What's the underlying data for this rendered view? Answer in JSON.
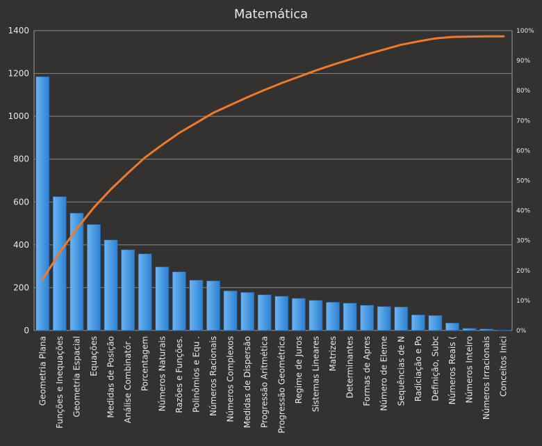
{
  "chart_data": {
    "type": "bar",
    "title": "Matemática",
    "categories": [
      "Geometria Plana",
      "Funções e Inequações",
      "Geometria Espacial",
      "Equações",
      "Medidas de Posição",
      "Análise Combinatór .",
      "Porcentagem",
      "Números Naturais",
      "Razões e Funções.",
      "Polinômios e Equ .",
      "Números Racionais",
      "Números Complexos",
      "Medidas de Dispersão",
      "Progressão Aritmética",
      "Progressão Geométrica",
      "Regime de Juros",
      "Sistemas Lineares",
      "Matrizes",
      "Determinantes",
      "Formas de Apres",
      "Número de Eleme",
      "Sequências de N",
      "Radiciação e Po",
      "Definição, Subc",
      "Números Reais (",
      "Números Inteiro",
      "Números Irracionais",
      "Conceitos Inici"
    ],
    "values": [
      1185,
      625,
      548,
      495,
      423,
      377,
      358,
      297,
      274,
      235,
      232,
      185,
      178,
      167,
      160,
      150,
      141,
      132,
      128,
      118,
      112,
      110,
      73,
      70,
      35,
      10,
      7,
      2
    ],
    "cumulative_percent": [
      17.0,
      26.0,
      33.9,
      41.0,
      47.1,
      52.5,
      57.7,
      61.9,
      65.9,
      69.2,
      72.6,
      75.2,
      77.8,
      80.2,
      82.5,
      84.6,
      86.7,
      88.6,
      90.4,
      92.1,
      93.7,
      95.3,
      96.4,
      97.4,
      97.9,
      98.0,
      98.1,
      98.1
    ],
    "ylim": [
      0,
      1400
    ],
    "y_ticks": [
      "0",
      "200",
      "400",
      "600",
      "800",
      "1000",
      "1200",
      "1400"
    ],
    "y2lim": [
      0,
      100
    ],
    "y2_ticks": [
      "0%",
      "10%",
      "20%",
      "30%",
      "40%",
      "50%",
      "60%",
      "70%",
      "80%",
      "90%",
      "100%"
    ],
    "grid": true,
    "colors": {
      "background": "#343230",
      "bar": "#3d8fdc",
      "bar_light": "#6fb3ee",
      "line": "#f07a28",
      "text": "#e8e8e8",
      "grid": "#8a8a8a"
    }
  }
}
